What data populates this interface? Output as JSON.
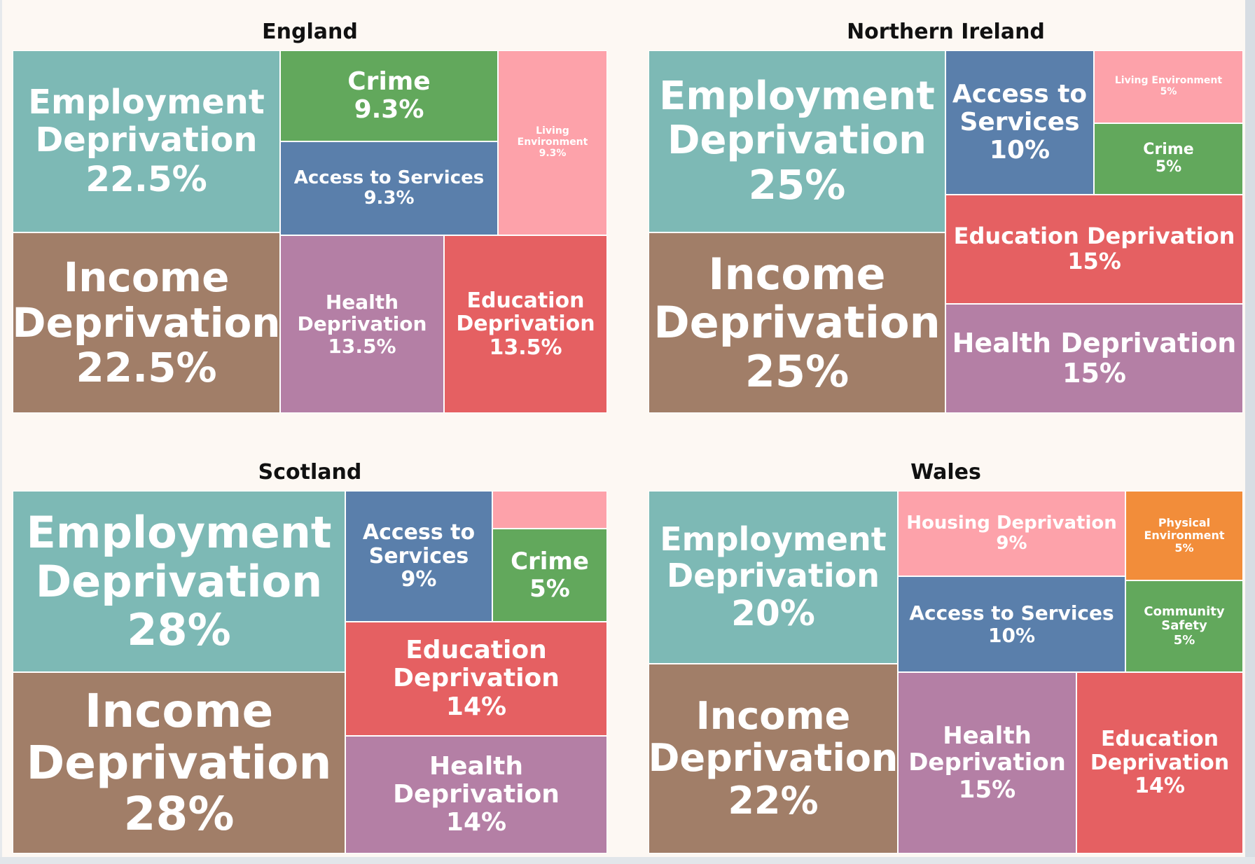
{
  "colors": {
    "employment": "#7db9b5",
    "income": "#a17e68",
    "crime": "#62a85c",
    "access": "#5a7fab",
    "living": "#fda2aa",
    "health": "#b47fa5",
    "education": "#e56062",
    "physical": "#f28d3a"
  },
  "chart_data": [
    {
      "type": "treemap",
      "title": "England",
      "items": [
        {
          "label": "Employment Deprivation",
          "value": 22.5,
          "display": "22.5%",
          "color_key": "employment"
        },
        {
          "label": "Crime",
          "value": 9.3,
          "display": "9.3%",
          "color_key": "crime"
        },
        {
          "label": "Living Environment",
          "value": 9.3,
          "display": "9.3%",
          "color_key": "living"
        },
        {
          "label": "Access to Services",
          "value": 9.3,
          "display": "9.3%",
          "color_key": "access"
        },
        {
          "label": "Income Deprivation",
          "value": 22.5,
          "display": "22.5%",
          "color_key": "income"
        },
        {
          "label": "Health Deprivation",
          "value": 13.5,
          "display": "13.5%",
          "color_key": "health"
        },
        {
          "label": "Education Deprivation",
          "value": 13.5,
          "display": "13.5%",
          "color_key": "education"
        }
      ]
    },
    {
      "type": "treemap",
      "title": "Northern Ireland",
      "items": [
        {
          "label": "Employment Deprivation",
          "value": 25,
          "display": "25%",
          "color_key": "employment"
        },
        {
          "label": "Access to Services",
          "value": 10,
          "display": "10%",
          "color_key": "access"
        },
        {
          "label": "Living Environment",
          "value": 5,
          "display": "5%",
          "color_key": "living"
        },
        {
          "label": "Crime",
          "value": 5,
          "display": "5%",
          "color_key": "crime"
        },
        {
          "label": "Education Deprivation",
          "value": 15,
          "display": "15%",
          "color_key": "education"
        },
        {
          "label": "Income Deprivation",
          "value": 25,
          "display": "25%",
          "color_key": "income"
        },
        {
          "label": "Health Deprivation",
          "value": 15,
          "display": "15%",
          "color_key": "health"
        }
      ]
    },
    {
      "type": "treemap",
      "title": "Scotland",
      "items": [
        {
          "label": "Employment Deprivation",
          "value": 28,
          "display": "28%",
          "color_key": "employment"
        },
        {
          "label": "Access to Services",
          "value": 9,
          "display": "9%",
          "color_key": "access"
        },
        {
          "label": "",
          "value": null,
          "display": "",
          "color_key": "living"
        },
        {
          "label": "Crime",
          "value": 5,
          "display": "5%",
          "color_key": "crime"
        },
        {
          "label": "Education Deprivation",
          "value": 14,
          "display": "14%",
          "color_key": "education"
        },
        {
          "label": "Income Deprivation",
          "value": 28,
          "display": "28%",
          "color_key": "income"
        },
        {
          "label": "Health Deprivation",
          "value": 14,
          "display": "14%",
          "color_key": "health"
        }
      ]
    },
    {
      "type": "treemap",
      "title": "Wales",
      "items": [
        {
          "label": "Employment Deprivation",
          "value": 20,
          "display": "20%",
          "color_key": "employment"
        },
        {
          "label": "Housing Deprivation",
          "value": 9,
          "display": "9%",
          "color_key": "living"
        },
        {
          "label": "Physical Environment",
          "value": 5,
          "display": "5%",
          "color_key": "physical"
        },
        {
          "label": "Access to Services",
          "value": 10,
          "display": "10%",
          "color_key": "access"
        },
        {
          "label": "Community Safety",
          "value": 5,
          "display": "5%",
          "color_key": "crime"
        },
        {
          "label": "Income Deprivation",
          "value": 22,
          "display": "22%",
          "color_key": "income"
        },
        {
          "label": "Health Deprivation",
          "value": 15,
          "display": "15%",
          "color_key": "health"
        },
        {
          "label": "Education Deprivation",
          "value": 14,
          "display": "14%",
          "color_key": "education"
        }
      ]
    }
  ]
}
